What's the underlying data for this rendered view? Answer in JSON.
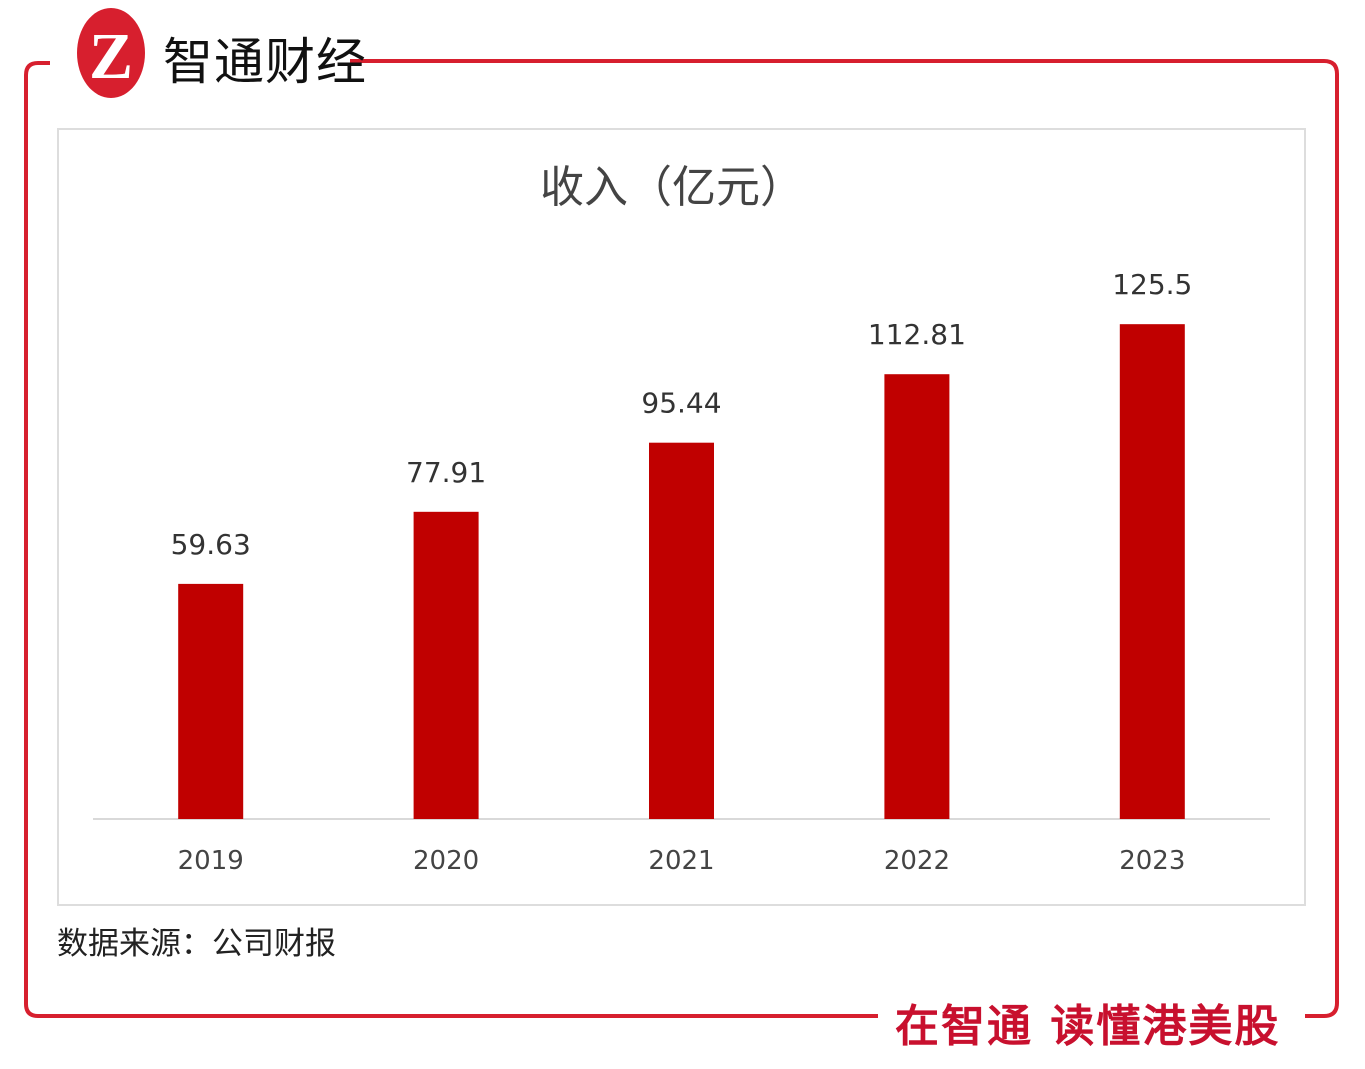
{
  "brand": {
    "name": "智通财经",
    "logo_letter": "Z",
    "slogan": "在智通 读懂港美股",
    "color": "#d71f2e"
  },
  "source": "数据来源：公司财报",
  "chart_data": {
    "type": "bar",
    "title": "收入（亿元）",
    "categories": [
      "2019",
      "2020",
      "2021",
      "2022",
      "2023"
    ],
    "values": [
      59.63,
      77.91,
      95.44,
      112.81,
      125.5
    ],
    "labels": [
      "59.63",
      "77.91",
      "95.44",
      "112.81",
      "125.5"
    ],
    "xlabel": "",
    "ylabel": "",
    "ylim": [
      0,
      140
    ],
    "grid": false,
    "bar_color": "#c00000"
  }
}
